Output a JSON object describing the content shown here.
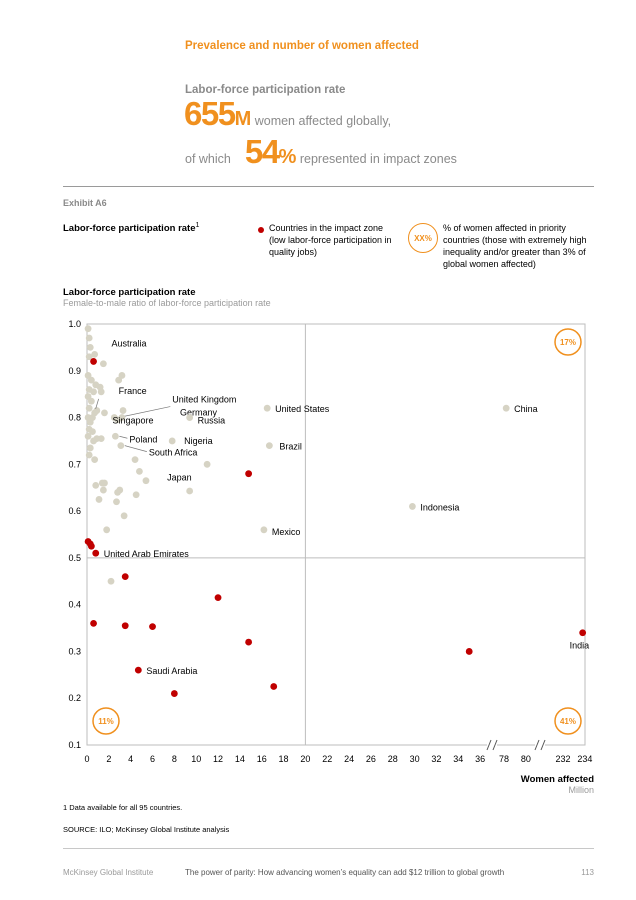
{
  "header": {
    "kicker": "Prevalence and number of women affected",
    "headline": "Labor-force participation rate",
    "big_number": "655",
    "big_unit": "M",
    "big_text": "women affected globally,",
    "of_which": "of which",
    "pct_number": "54",
    "pct_unit": "%",
    "pct_text": "represented in impact zones"
  },
  "exhibit": {
    "label": "Exhibit A6",
    "title": "Labor-force participation rate",
    "title_sup": "1"
  },
  "legend": {
    "dot_text": "Countries in the impact zone (low labor-force participation in quality jobs)",
    "badge": "XX%",
    "badge_text": "% of women affected in priority countries (those with extremely high inequality and/or greater than 3% of global women affected)"
  },
  "chart_data": {
    "type": "scatter",
    "title": "Labor-force participation rate",
    "subtitle": "Female-to-male ratio of labor-force participation rate",
    "xlabel": "Women affected",
    "xunit": "Million",
    "ylim": [
      0.1,
      1.0
    ],
    "yticks": [
      "0.1",
      "0.2",
      "0.3",
      "0.4",
      "0.5",
      "0.6",
      "0.7",
      "0.8",
      "0.9",
      "1.0"
    ],
    "xticks": [
      "0",
      "2",
      "4",
      "6",
      "8",
      "10",
      "12",
      "14",
      "16",
      "18",
      "20",
      "22",
      "24",
      "26",
      "28",
      "30",
      "32",
      "34",
      "36",
      "78",
      "80",
      "232",
      "234"
    ],
    "x_axis_breaks": [
      "36–78",
      "80–232"
    ],
    "threshold_x": 20,
    "threshold_y": 0.5,
    "quadrant_badges": {
      "top_right": "17%",
      "bottom_left": "11%",
      "bottom_right": "41%"
    },
    "colors": {
      "impact_zone": "#c00000",
      "other": "#d6d3c4",
      "accent": "#f0901e"
    },
    "labeled_points": [
      {
        "label": "Australia",
        "x": 0.6,
        "y": 0.92,
        "impact": true
      },
      {
        "label": "France",
        "x": 0.7,
        "y": 0.81,
        "impact": false
      },
      {
        "label": "United Kingdom",
        "x": 2.5,
        "y": 0.8,
        "impact": false
      },
      {
        "label": "Germany",
        "x": 3.2,
        "y": 0.8,
        "impact": false
      },
      {
        "label": "Russia",
        "x": 9.4,
        "y": 0.8,
        "impact": false
      },
      {
        "label": "United States",
        "x": 16.5,
        "y": 0.82,
        "impact": false
      },
      {
        "label": "China",
        "x": 78.2,
        "y": 0.82,
        "impact": false
      },
      {
        "label": "Singapore",
        "x": 0.5,
        "y": 0.77,
        "impact": false
      },
      {
        "label": "Poland",
        "x": 2.6,
        "y": 0.76,
        "impact": false
      },
      {
        "label": "Nigeria",
        "x": 7.8,
        "y": 0.75,
        "impact": false
      },
      {
        "label": "Brazil",
        "x": 16.7,
        "y": 0.74,
        "impact": false
      },
      {
        "label": "South Africa",
        "x": 3.1,
        "y": 0.74,
        "impact": false
      },
      {
        "label": "Japan",
        "x": 11.0,
        "y": 0.7,
        "impact": false
      },
      {
        "label": "Indonesia",
        "x": 29.8,
        "y": 0.61,
        "impact": false
      },
      {
        "label": "Mexico",
        "x": 16.2,
        "y": 0.56,
        "impact": false
      },
      {
        "label": "United Arab Emirates",
        "x": 0.8,
        "y": 0.51,
        "impact": true
      },
      {
        "label": "Saudi Arabia",
        "x": 4.7,
        "y": 0.26,
        "impact": true
      },
      {
        "label": "India",
        "x": 233.8,
        "y": 0.34,
        "impact": true
      }
    ],
    "other_points": [
      {
        "x": 0.1,
        "y": 0.99
      },
      {
        "x": 0.2,
        "y": 0.97
      },
      {
        "x": 0.3,
        "y": 0.95
      },
      {
        "x": 0.2,
        "y": 0.93
      },
      {
        "x": 0.7,
        "y": 0.935
      },
      {
        "x": 1.5,
        "y": 0.915
      },
      {
        "x": 0.1,
        "y": 0.89
      },
      {
        "x": 0.4,
        "y": 0.88
      },
      {
        "x": 0.8,
        "y": 0.87
      },
      {
        "x": 1.2,
        "y": 0.865
      },
      {
        "x": 0.2,
        "y": 0.86
      },
      {
        "x": 0.6,
        "y": 0.855
      },
      {
        "x": 1.3,
        "y": 0.855
      },
      {
        "x": 2.9,
        "y": 0.88
      },
      {
        "x": 3.2,
        "y": 0.89
      },
      {
        "x": 0.1,
        "y": 0.845
      },
      {
        "x": 0.4,
        "y": 0.835
      },
      {
        "x": 0.2,
        "y": 0.82
      },
      {
        "x": 0.9,
        "y": 0.815
      },
      {
        "x": 0.1,
        "y": 0.8
      },
      {
        "x": 0.5,
        "y": 0.8
      },
      {
        "x": 1.6,
        "y": 0.81
      },
      {
        "x": 0.3,
        "y": 0.79
      },
      {
        "x": 3.3,
        "y": 0.815
      },
      {
        "x": 2.8,
        "y": 0.795
      },
      {
        "x": 0.2,
        "y": 0.775
      },
      {
        "x": 0.1,
        "y": 0.76
      },
      {
        "x": 0.6,
        "y": 0.75
      },
      {
        "x": 0.9,
        "y": 0.755
      },
      {
        "x": 1.3,
        "y": 0.755
      },
      {
        "x": 0.3,
        "y": 0.735
      },
      {
        "x": 0.2,
        "y": 0.72
      },
      {
        "x": 0.7,
        "y": 0.71
      },
      {
        "x": 4.4,
        "y": 0.71
      },
      {
        "x": 4.8,
        "y": 0.685
      },
      {
        "x": 5.4,
        "y": 0.665
      },
      {
        "x": 0.8,
        "y": 0.655
      },
      {
        "x": 1.4,
        "y": 0.66
      },
      {
        "x": 1.6,
        "y": 0.66
      },
      {
        "x": 1.5,
        "y": 0.645
      },
      {
        "x": 2.8,
        "y": 0.64
      },
      {
        "x": 3.0,
        "y": 0.645
      },
      {
        "x": 4.5,
        "y": 0.635
      },
      {
        "x": 9.4,
        "y": 0.643
      },
      {
        "x": 1.1,
        "y": 0.625
      },
      {
        "x": 2.7,
        "y": 0.62
      },
      {
        "x": 3.4,
        "y": 0.59
      },
      {
        "x": 1.8,
        "y": 0.56
      },
      {
        "x": 2.2,
        "y": 0.45
      }
    ],
    "impact_points": [
      {
        "x": 0.1,
        "y": 0.535
      },
      {
        "x": 0.3,
        "y": 0.53
      },
      {
        "x": 0.4,
        "y": 0.525
      },
      {
        "x": 0.6,
        "y": 0.36
      },
      {
        "x": 3.5,
        "y": 0.46
      },
      {
        "x": 3.5,
        "y": 0.355
      },
      {
        "x": 6.0,
        "y": 0.353
      },
      {
        "x": 12.0,
        "y": 0.415
      },
      {
        "x": 14.8,
        "y": 0.68
      },
      {
        "x": 14.8,
        "y": 0.32
      },
      {
        "x": 8.0,
        "y": 0.21
      },
      {
        "x": 17.1,
        "y": 0.225
      },
      {
        "x": 35.0,
        "y": 0.3
      }
    ]
  },
  "notes": {
    "footnote": "1  Data available for all 95 countries.",
    "source": "SOURCE:  ILO; McKinsey Global Institute analysis"
  },
  "footer": {
    "publisher": "McKinsey Global Institute",
    "report_title": "The power of parity: How advancing women’s equality can add $12 trillion to global growth",
    "page": "113"
  }
}
